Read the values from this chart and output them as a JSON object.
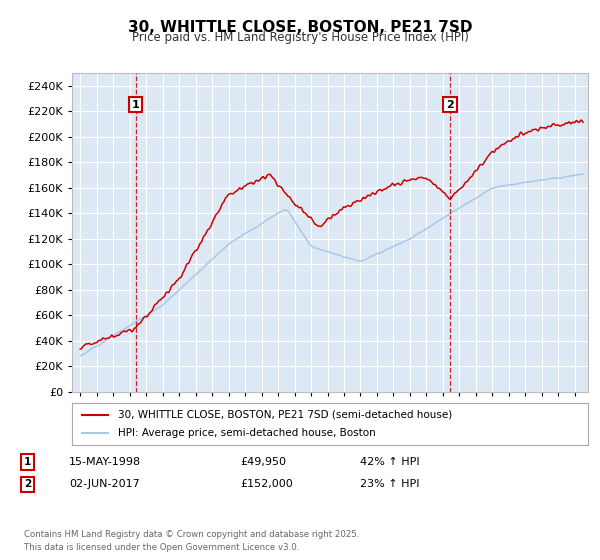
{
  "title": "30, WHITTLE CLOSE, BOSTON, PE21 7SD",
  "subtitle": "Price paid vs. HM Land Registry's House Price Index (HPI)",
  "background_color": "#dce9f5",
  "red_color": "#cc0000",
  "blue_color": "#a8c8e8",
  "grid_color": "#ffffff",
  "sale1_date": 1998.37,
  "sale2_date": 2017.42,
  "sale1_label": "1",
  "sale2_label": "2",
  "legend_line1": "30, WHITTLE CLOSE, BOSTON, PE21 7SD (semi-detached house)",
  "legend_line2": "HPI: Average price, semi-detached house, Boston",
  "footer": "Contains HM Land Registry data © Crown copyright and database right 2025.\nThis data is licensed under the Open Government Licence v3.0.",
  "ylim": [
    0,
    250000
  ],
  "xlim_start": 1994.5,
  "xlim_end": 2025.8,
  "fig_width": 6.0,
  "fig_height": 5.6
}
